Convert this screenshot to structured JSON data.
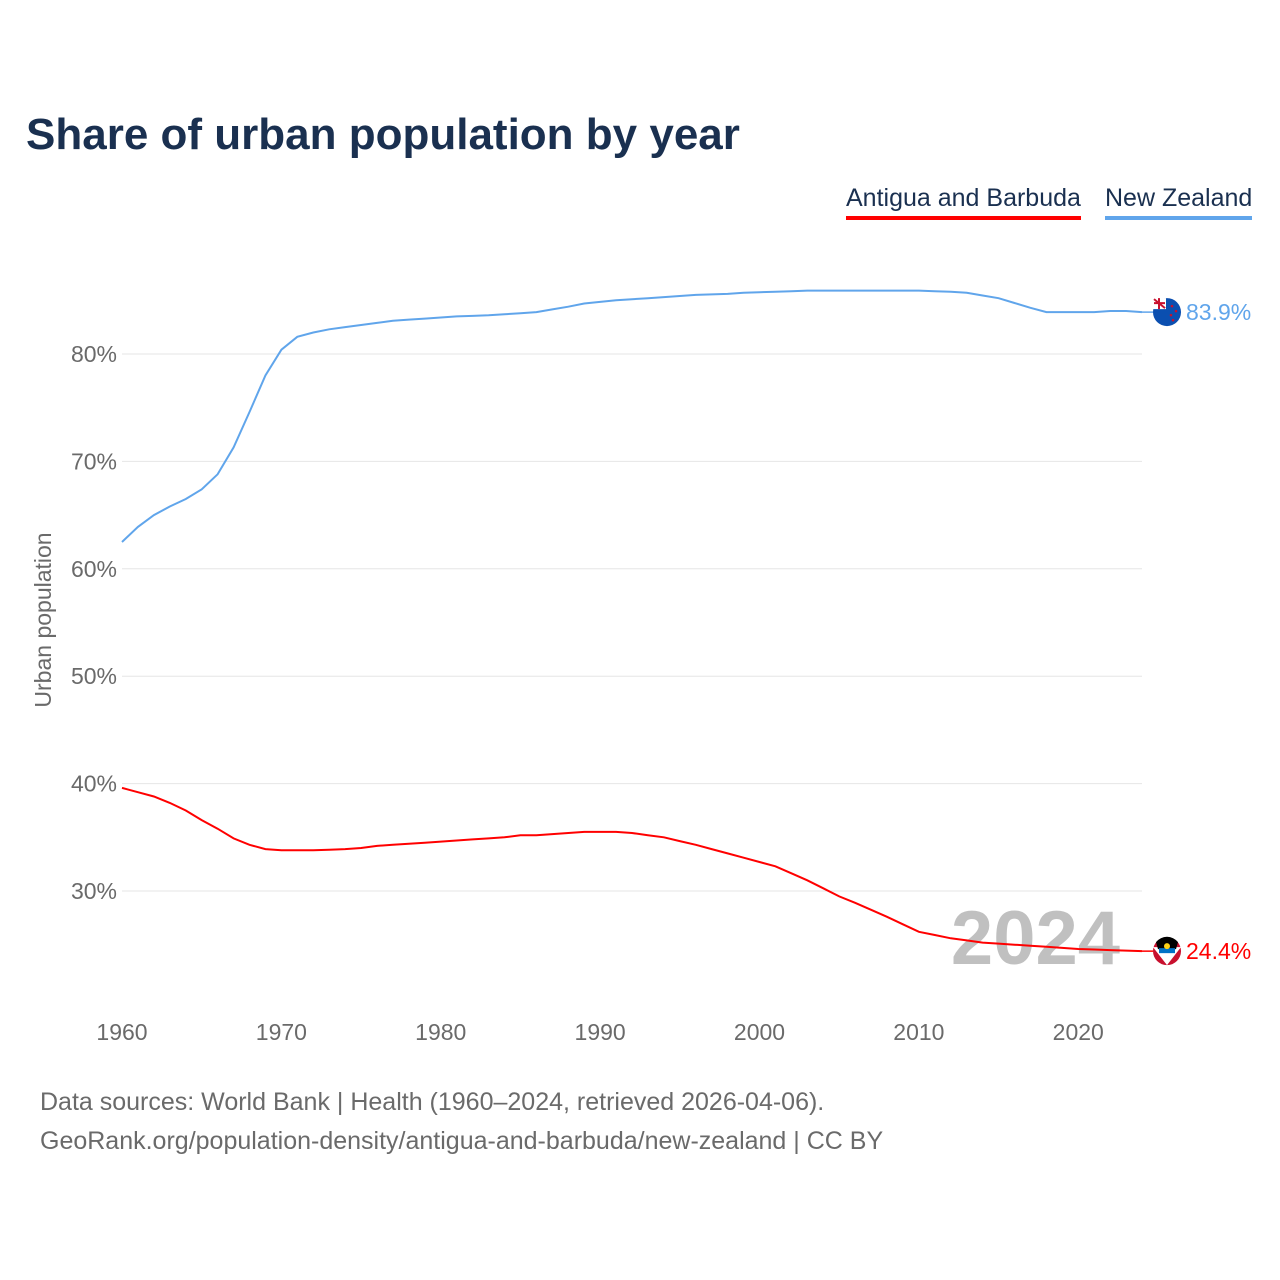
{
  "title": "Share of urban population by year",
  "legend": [
    "Antigua and Barbuda",
    "New Zealand"
  ],
  "watermark_year": "2024",
  "footer": {
    "line1": "Data sources: World Bank | Health (1960–2024, retrieved 2026-04-06).",
    "line2": "GeoRank.org/population-density/antigua-and-barbuda/new-zealand | CC BY"
  },
  "chart_data": {
    "type": "line",
    "title": "Share of urban population by year",
    "xlabel": "",
    "ylabel": "Urban population",
    "xlim": [
      1960,
      2024
    ],
    "ylim": [
      20,
      90
    ],
    "x_ticks": [
      1960,
      1970,
      1980,
      1990,
      2000,
      2010,
      2020
    ],
    "y_ticks": [
      30,
      40,
      50,
      60,
      70,
      80
    ],
    "y_tick_labels": [
      "30%",
      "40%",
      "50%",
      "60%",
      "70%",
      "80%"
    ],
    "grid": true,
    "legend_position": "top-right",
    "x_start": 1960,
    "series": [
      {
        "name": "Antigua and Barbuda",
        "color": "#ff0000",
        "end_label": "24.4%",
        "values": [
          39.6,
          39.2,
          38.8,
          38.2,
          37.5,
          36.6,
          35.8,
          34.9,
          34.3,
          33.9,
          33.8,
          33.8,
          33.8,
          33.85,
          33.9,
          34.0,
          34.2,
          34.3,
          34.4,
          34.5,
          34.6,
          34.7,
          34.8,
          34.9,
          35.0,
          35.2,
          35.2,
          35.3,
          35.4,
          35.5,
          35.5,
          35.5,
          35.4,
          35.2,
          35.0,
          34.65,
          34.3,
          33.9,
          33.5,
          33.1,
          32.7,
          32.3,
          31.65,
          31.0,
          30.25,
          29.5,
          28.9,
          28.25,
          27.6,
          26.9,
          26.2,
          25.9,
          25.6,
          25.4,
          25.2,
          25.1,
          25.0,
          24.9,
          24.8,
          24.7,
          24.6,
          24.55,
          24.5,
          24.45,
          24.4
        ]
      },
      {
        "name": "New Zealand",
        "color": "#60a5eb",
        "end_label": "83.9%",
        "values": [
          62.5,
          63.9,
          65.0,
          65.8,
          66.5,
          67.4,
          68.8,
          71.3,
          74.6,
          78.0,
          80.4,
          81.6,
          82.0,
          82.3,
          82.5,
          82.7,
          82.9,
          83.1,
          83.2,
          83.3,
          83.4,
          83.5,
          83.55,
          83.6,
          83.7,
          83.8,
          83.9,
          84.15,
          84.4,
          84.7,
          84.85,
          85.0,
          85.1,
          85.2,
          85.3,
          85.4,
          85.5,
          85.55,
          85.6,
          85.7,
          85.75,
          85.8,
          85.85,
          85.9,
          85.9,
          85.9,
          85.9,
          85.9,
          85.9,
          85.9,
          85.9,
          85.85,
          85.8,
          85.7,
          85.45,
          85.2,
          84.75,
          84.3,
          83.9,
          83.9,
          83.9,
          83.9,
          84.0,
          84.0,
          83.9
        ]
      }
    ]
  }
}
